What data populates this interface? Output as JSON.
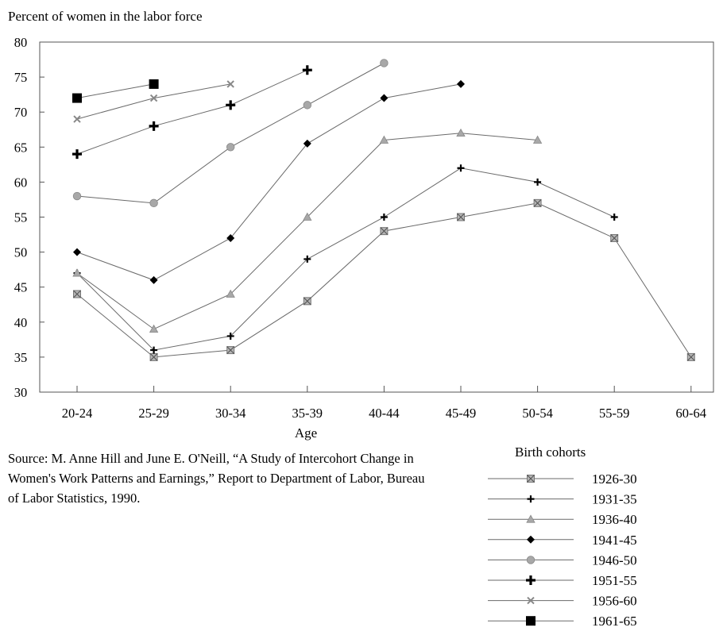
{
  "chart_data": {
    "type": "line",
    "title": "",
    "ylabel": "Percent of women in the labor force",
    "xlabel": "Age",
    "categories": [
      "20-24",
      "25-29",
      "30-34",
      "35-39",
      "40-44",
      "45-49",
      "50-54",
      "55-59",
      "60-64"
    ],
    "ylim": [
      30,
      80
    ],
    "yticks": [
      30,
      35,
      40,
      45,
      50,
      55,
      60,
      65,
      70,
      75,
      80
    ],
    "grid": false,
    "legend_title": "Birth cohorts",
    "legend_position": "bottom-right",
    "series": [
      {
        "name": "1926-30",
        "marker": "square-x",
        "values": [
          44,
          35,
          36,
          43,
          53,
          55,
          57,
          52,
          35
        ]
      },
      {
        "name": "1931-35",
        "marker": "small-plus",
        "values": [
          47,
          36,
          38,
          49,
          55,
          62,
          60,
          55,
          null
        ]
      },
      {
        "name": "1936-40",
        "marker": "triangle",
        "values": [
          47,
          39,
          44,
          55,
          66,
          67,
          66,
          null,
          null
        ]
      },
      {
        "name": "1941-45",
        "marker": "diamond",
        "values": [
          50,
          46,
          52,
          65.5,
          72,
          74,
          null,
          null,
          null
        ]
      },
      {
        "name": "1946-50",
        "marker": "circle",
        "values": [
          58,
          57,
          65,
          71,
          77,
          null,
          null,
          null,
          null
        ]
      },
      {
        "name": "1951-55",
        "marker": "big-plus",
        "values": [
          64,
          68,
          71,
          76,
          null,
          null,
          null,
          null,
          null
        ]
      },
      {
        "name": "1956-60",
        "marker": "x",
        "values": [
          69,
          72,
          74,
          null,
          null,
          null,
          null,
          null,
          null
        ]
      },
      {
        "name": "1961-65",
        "marker": "square",
        "values": [
          72,
          74,
          null,
          null,
          null,
          null,
          null,
          null,
          null
        ]
      }
    ]
  },
  "source_note": "Source: M. Anne Hill and June E. O'Neill, “A Study of Intercohort Change in Women's Work Patterns and Earnings,” Report to Department of Labor, Bureau of Labor Statistics, 1990."
}
